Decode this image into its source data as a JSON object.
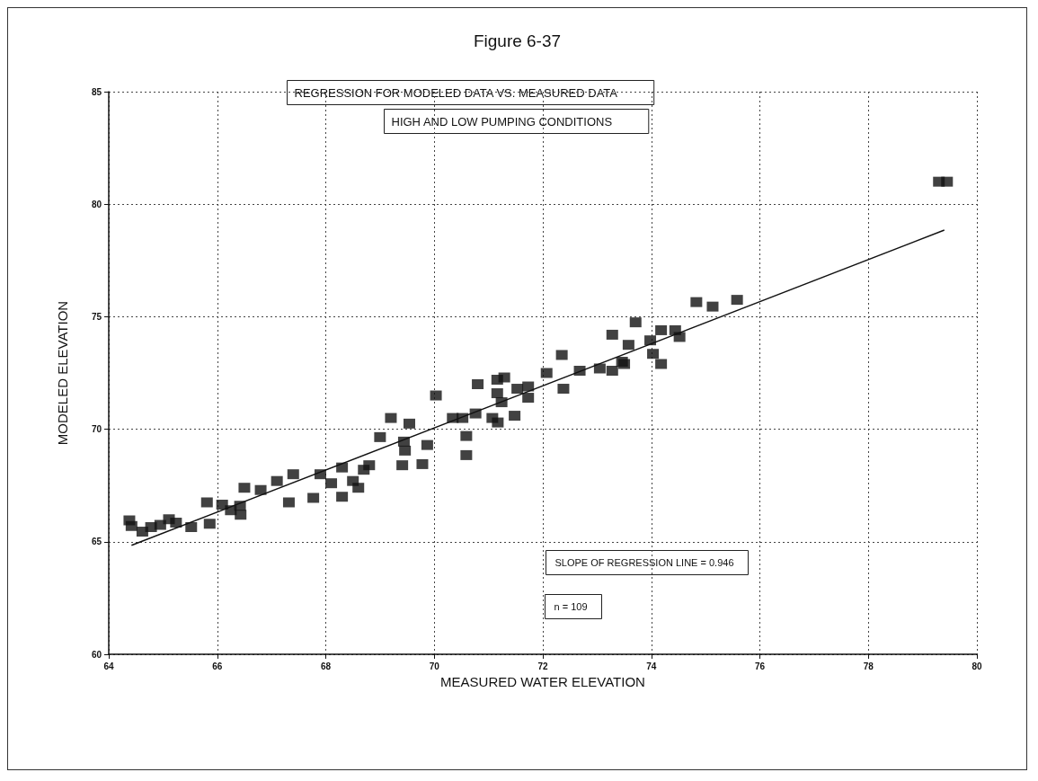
{
  "chart_data": {
    "type": "scatter",
    "title": "Figure 6-37",
    "xlabel": "MEASURED WATER ELEVATION",
    "ylabel": "MODELED ELEVATION",
    "annotations": [
      "REGRESSION FOR MODELED DATA VS. MEASURED DATA",
      "HIGH AND LOW PUMPING CONDITIONS",
      "SLOPE OF REGRESSION LINE = 0.946",
      "n = 109"
    ],
    "xlim": [
      64,
      80
    ],
    "xticks": [
      64,
      66,
      68,
      70,
      72,
      74,
      76,
      78,
      80
    ],
    "ylim": [
      60,
      85
    ],
    "yticks": [
      60,
      65,
      70,
      75,
      80,
      85
    ],
    "grid": true,
    "marker": "square",
    "series": [
      {
        "color": "#111111",
        "x": [
          64.38,
          64.42,
          64.62,
          64.78,
          64.95,
          65.11,
          65.24,
          65.52,
          65.86,
          65.81,
          66.09,
          66.25,
          66.43,
          66.42,
          67.32,
          67.77,
          66.5,
          66.8,
          67.1,
          67.4,
          67.9,
          68.1,
          68.3,
          68.5,
          68.6,
          68.7,
          68.8,
          68.3,
          69.0,
          69.2,
          69.54,
          69.44,
          69.46,
          69.41,
          69.78,
          69.87,
          70.03,
          70.34,
          70.52,
          70.59,
          70.59,
          70.76,
          70.8,
          71.07,
          71.17,
          71.16,
          71.29,
          71.16,
          71.24,
          71.48,
          71.53,
          71.73,
          71.73,
          72.07,
          72.35,
          72.38,
          72.68,
          73.05,
          73.28,
          73.5,
          73.46,
          73.28,
          73.58,
          73.71,
          73.98,
          74.03,
          74.18,
          74.18,
          74.44,
          74.52,
          74.83,
          75.13,
          75.58,
          79.3,
          79.45
        ],
        "values": [
          65.95,
          65.7,
          65.45,
          65.65,
          65.75,
          66.0,
          65.85,
          65.65,
          65.8,
          66.75,
          66.65,
          66.4,
          66.2,
          66.6,
          66.75,
          66.95,
          67.4,
          67.3,
          67.7,
          68.0,
          68.0,
          67.6,
          67.0,
          67.7,
          67.4,
          68.2,
          68.4,
          68.3,
          69.65,
          70.5,
          70.25,
          69.45,
          69.05,
          68.4,
          68.45,
          69.3,
          71.5,
          70.5,
          70.5,
          69.7,
          68.85,
          70.7,
          72.0,
          70.5,
          70.3,
          72.2,
          72.3,
          71.6,
          71.2,
          70.6,
          71.8,
          71.4,
          71.9,
          72.5,
          73.3,
          71.8,
          72.6,
          72.7,
          72.6,
          72.9,
          73.0,
          74.2,
          73.75,
          74.75,
          73.95,
          73.35,
          72.9,
          74.4,
          74.4,
          74.1,
          75.65,
          75.45,
          75.75,
          81.0,
          81.0
        ]
      },
      {
        "type": "line",
        "color": "#111111",
        "x": [
          64.42,
          79.4
        ],
        "values": [
          64.84,
          78.85
        ],
        "marker": "none"
      }
    ]
  }
}
